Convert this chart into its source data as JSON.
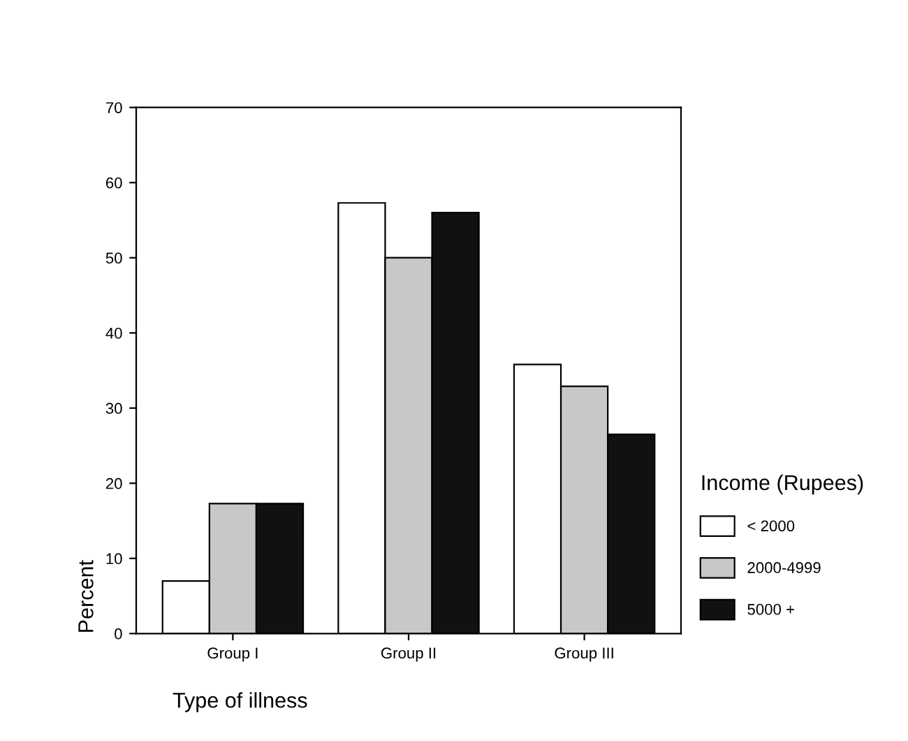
{
  "chart_data": {
    "type": "bar",
    "xlabel": "Type of illness",
    "ylabel": "Percent",
    "legend_title": "Income (Rupees)",
    "categories": [
      "Group I",
      "Group II",
      "Group III"
    ],
    "series": [
      {
        "name": "< 2000",
        "color": "#ffffff",
        "values": [
          7,
          57.3,
          35.8
        ]
      },
      {
        "name": "2000-4999",
        "color": "#c8c8c8",
        "values": [
          17.3,
          50,
          32.9
        ]
      },
      {
        "name": "5000 +",
        "color": "#111111",
        "values": [
          17.3,
          56,
          26.5
        ]
      }
    ],
    "ylim": [
      0,
      70
    ],
    "yticks": [
      0,
      10,
      20,
      30,
      40,
      50,
      60,
      70
    ],
    "grid": false,
    "legend": "right"
  }
}
